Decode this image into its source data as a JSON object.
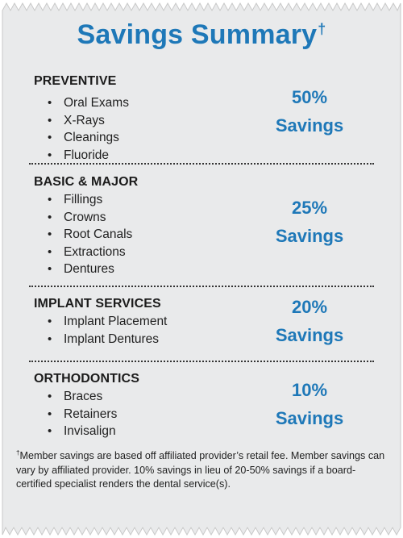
{
  "title": "Savings Summary",
  "title_mark": "†",
  "sections": [
    {
      "title": "PREVENTIVE",
      "items": [
        "Oral Exams",
        "X-Rays",
        "Cleanings",
        "Fluoride"
      ],
      "percent": "50%",
      "savings_label": "Savings"
    },
    {
      "title": "BASIC & MAJOR",
      "items": [
        "Fillings",
        "Crowns",
        "Root Canals",
        "Extractions",
        "Dentures"
      ],
      "percent": "25%",
      "savings_label": "Savings"
    },
    {
      "title": "IMPLANT SERVICES",
      "items": [
        "Implant Placement",
        "Implant Dentures"
      ],
      "percent": "20%",
      "savings_label": "Savings"
    },
    {
      "title": "ORTHODONTICS",
      "items": [
        "Braces",
        "Retainers",
        "Invisalign"
      ],
      "percent": "10%",
      "savings_label": "Savings"
    }
  ],
  "footnote": {
    "mark": "†",
    "text": "Member savings are based off affiliated provider’s retail fee. Member savings can vary by affiliated provider. 10% savings in lieu of 20-50% savings if a board-certified specialist renders the dental service(s)."
  },
  "colors": {
    "accent": "#1e78b8",
    "card_background": "#e9eaeb",
    "text": "#1f1f1f"
  }
}
